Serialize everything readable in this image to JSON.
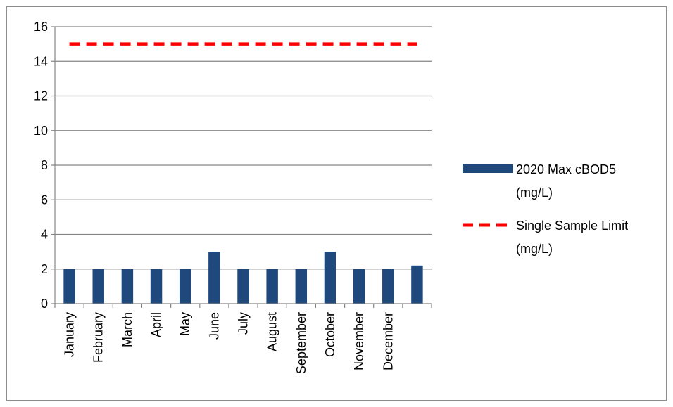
{
  "chart_data": {
    "type": "bar",
    "categories": [
      "January",
      "February",
      "March",
      "April",
      "May",
      "June",
      "July",
      "August",
      "September",
      "October",
      "November",
      "December",
      ""
    ],
    "series": [
      {
        "name": "2020 Max cBOD5 (mg/L)",
        "type": "bar",
        "color": "#1F497D",
        "values": [
          2,
          2,
          2,
          2,
          2,
          3,
          2,
          2,
          2,
          3,
          2,
          2,
          2.2
        ]
      },
      {
        "name": "Single Sample Limit (mg/L)",
        "type": "line",
        "style": "dashed",
        "color": "#FF0000",
        "values": [
          15,
          15,
          15,
          15,
          15,
          15,
          15,
          15,
          15,
          15,
          15,
          15,
          15
        ]
      }
    ],
    "ylim": [
      0,
      16
    ],
    "yticks": [
      "0",
      "2",
      "4",
      "6",
      "8",
      "10",
      "12",
      "14",
      "16"
    ],
    "grid": true,
    "legend_position": "right",
    "legend": {
      "bar_label_lines": [
        "2020 Max cBOD5",
        "(mg/L)"
      ],
      "line_label_lines": [
        "Single Sample Limit",
        "(mg/L)"
      ]
    },
    "title": "",
    "xlabel": "",
    "ylabel": ""
  }
}
